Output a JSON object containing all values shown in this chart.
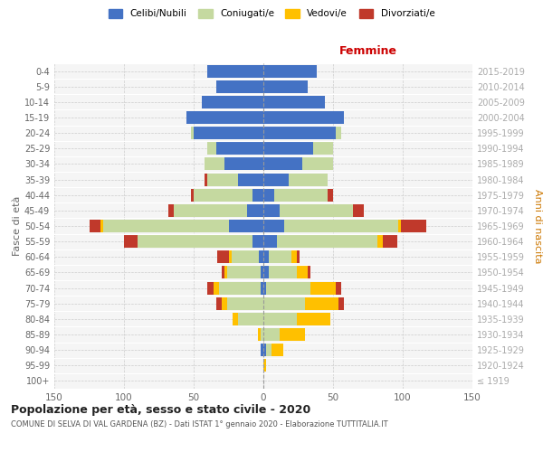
{
  "age_groups": [
    "100+",
    "95-99",
    "90-94",
    "85-89",
    "80-84",
    "75-79",
    "70-74",
    "65-69",
    "60-64",
    "55-59",
    "50-54",
    "45-49",
    "40-44",
    "35-39",
    "30-34",
    "25-29",
    "20-24",
    "15-19",
    "10-14",
    "5-9",
    "0-4"
  ],
  "birth_years": [
    "≤ 1919",
    "1920-1924",
    "1925-1929",
    "1930-1934",
    "1935-1939",
    "1940-1944",
    "1945-1949",
    "1950-1954",
    "1955-1959",
    "1960-1964",
    "1965-1969",
    "1970-1974",
    "1975-1979",
    "1980-1984",
    "1985-1989",
    "1990-1994",
    "1995-1999",
    "2000-2004",
    "2005-2009",
    "2010-2014",
    "2015-2019"
  ],
  "males": {
    "celibi": [
      0,
      0,
      2,
      0,
      0,
      0,
      2,
      2,
      3,
      8,
      25,
      12,
      8,
      18,
      28,
      34,
      50,
      55,
      44,
      34,
      40
    ],
    "coniugati": [
      0,
      0,
      0,
      2,
      18,
      26,
      30,
      24,
      20,
      82,
      90,
      52,
      42,
      22,
      14,
      6,
      2,
      0,
      0,
      0,
      0
    ],
    "vedovi": [
      0,
      0,
      0,
      2,
      4,
      4,
      4,
      2,
      2,
      0,
      2,
      0,
      0,
      0,
      0,
      0,
      0,
      0,
      0,
      0,
      0
    ],
    "divorziati": [
      0,
      0,
      0,
      0,
      0,
      4,
      4,
      2,
      8,
      10,
      8,
      4,
      2,
      2,
      0,
      0,
      0,
      0,
      0,
      0,
      0
    ]
  },
  "females": {
    "nubili": [
      0,
      0,
      2,
      0,
      0,
      0,
      2,
      4,
      4,
      10,
      15,
      12,
      8,
      18,
      28,
      36,
      52,
      58,
      44,
      32,
      38
    ],
    "coniugate": [
      0,
      0,
      4,
      12,
      24,
      30,
      32,
      20,
      16,
      72,
      82,
      52,
      38,
      28,
      22,
      14,
      4,
      0,
      0,
      0,
      0
    ],
    "vedove": [
      0,
      2,
      8,
      18,
      24,
      24,
      18,
      8,
      4,
      4,
      2,
      0,
      0,
      0,
      0,
      0,
      0,
      0,
      0,
      0,
      0
    ],
    "divorziate": [
      0,
      0,
      0,
      0,
      0,
      4,
      4,
      2,
      2,
      10,
      18,
      8,
      4,
      0,
      0,
      0,
      0,
      0,
      0,
      0,
      0
    ]
  },
  "colors": {
    "celibi": "#4472c4",
    "coniugati": "#c5d9a0",
    "vedovi": "#ffc000",
    "divorziati": "#c0392b"
  },
  "xlim": 150,
  "title": "Popolazione per età, sesso e stato civile - 2020",
  "subtitle": "COMUNE DI SELVA DI VAL GARDENA (BZ) - Dati ISTAT 1° gennaio 2020 - Elaborazione TUTTITALIA.IT",
  "ylabel_left": "Fasce di età",
  "ylabel_right": "Anni di nascita",
  "xlabel_right": "Femmine",
  "bg_color": "#ffffff",
  "plot_bg": "#f5f5f5",
  "grid_color": "#cccccc"
}
